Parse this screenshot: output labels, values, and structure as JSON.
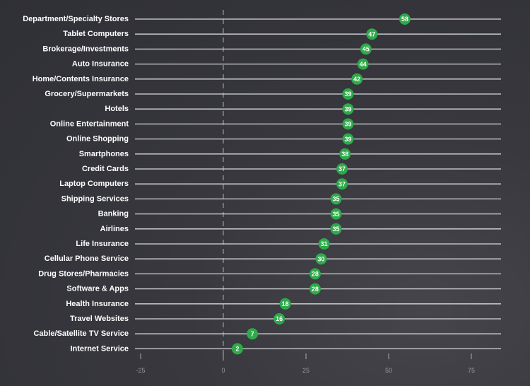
{
  "chart_data": {
    "type": "scatter",
    "title": "",
    "xlabel": "",
    "ylabel": "",
    "xlim": [
      -25,
      85
    ],
    "xticks": [
      "-25",
      "0",
      "25",
      "50",
      "75"
    ],
    "xtick_values": [
      -25,
      0,
      25,
      50,
      75
    ],
    "categories": [
      "Department/Specialty Stores",
      "Tablet Computers",
      "Brokerage/Investments",
      "Auto Insurance",
      "Home/Contents Insurance",
      "Grocery/Supermarkets",
      "Hotels",
      "Online Entertainment",
      "Online Shopping",
      "Smartphones",
      "Credit Cards",
      "Laptop Computers",
      "Shipping Services",
      "Banking",
      "Airlines",
      "Life Insurance",
      "Cellular Phone Service",
      "Drug Stores/Pharmacies",
      "Software & Apps",
      "Health Insurance",
      "Travel Websites",
      "Cable/Satellite TV Service",
      "Internet Service"
    ],
    "values": [
      58,
      47,
      45,
      44,
      42,
      39,
      39,
      39,
      39,
      38,
      37,
      37,
      35,
      35,
      35,
      31,
      30,
      28,
      28,
      18,
      16,
      7,
      2
    ],
    "value_labels": [
      "58",
      "47",
      "45",
      "44",
      "42",
      "39",
      "39",
      "39",
      "39",
      "38",
      "37",
      "37",
      "35",
      "35",
      "35",
      "31",
      "30",
      "28",
      "28",
      "18",
      "16",
      "7",
      "2"
    ],
    "colors": {
      "dot": "#2eaa4a",
      "line": "#d8d8dc",
      "zero_line": "#9a9aa0"
    }
  }
}
